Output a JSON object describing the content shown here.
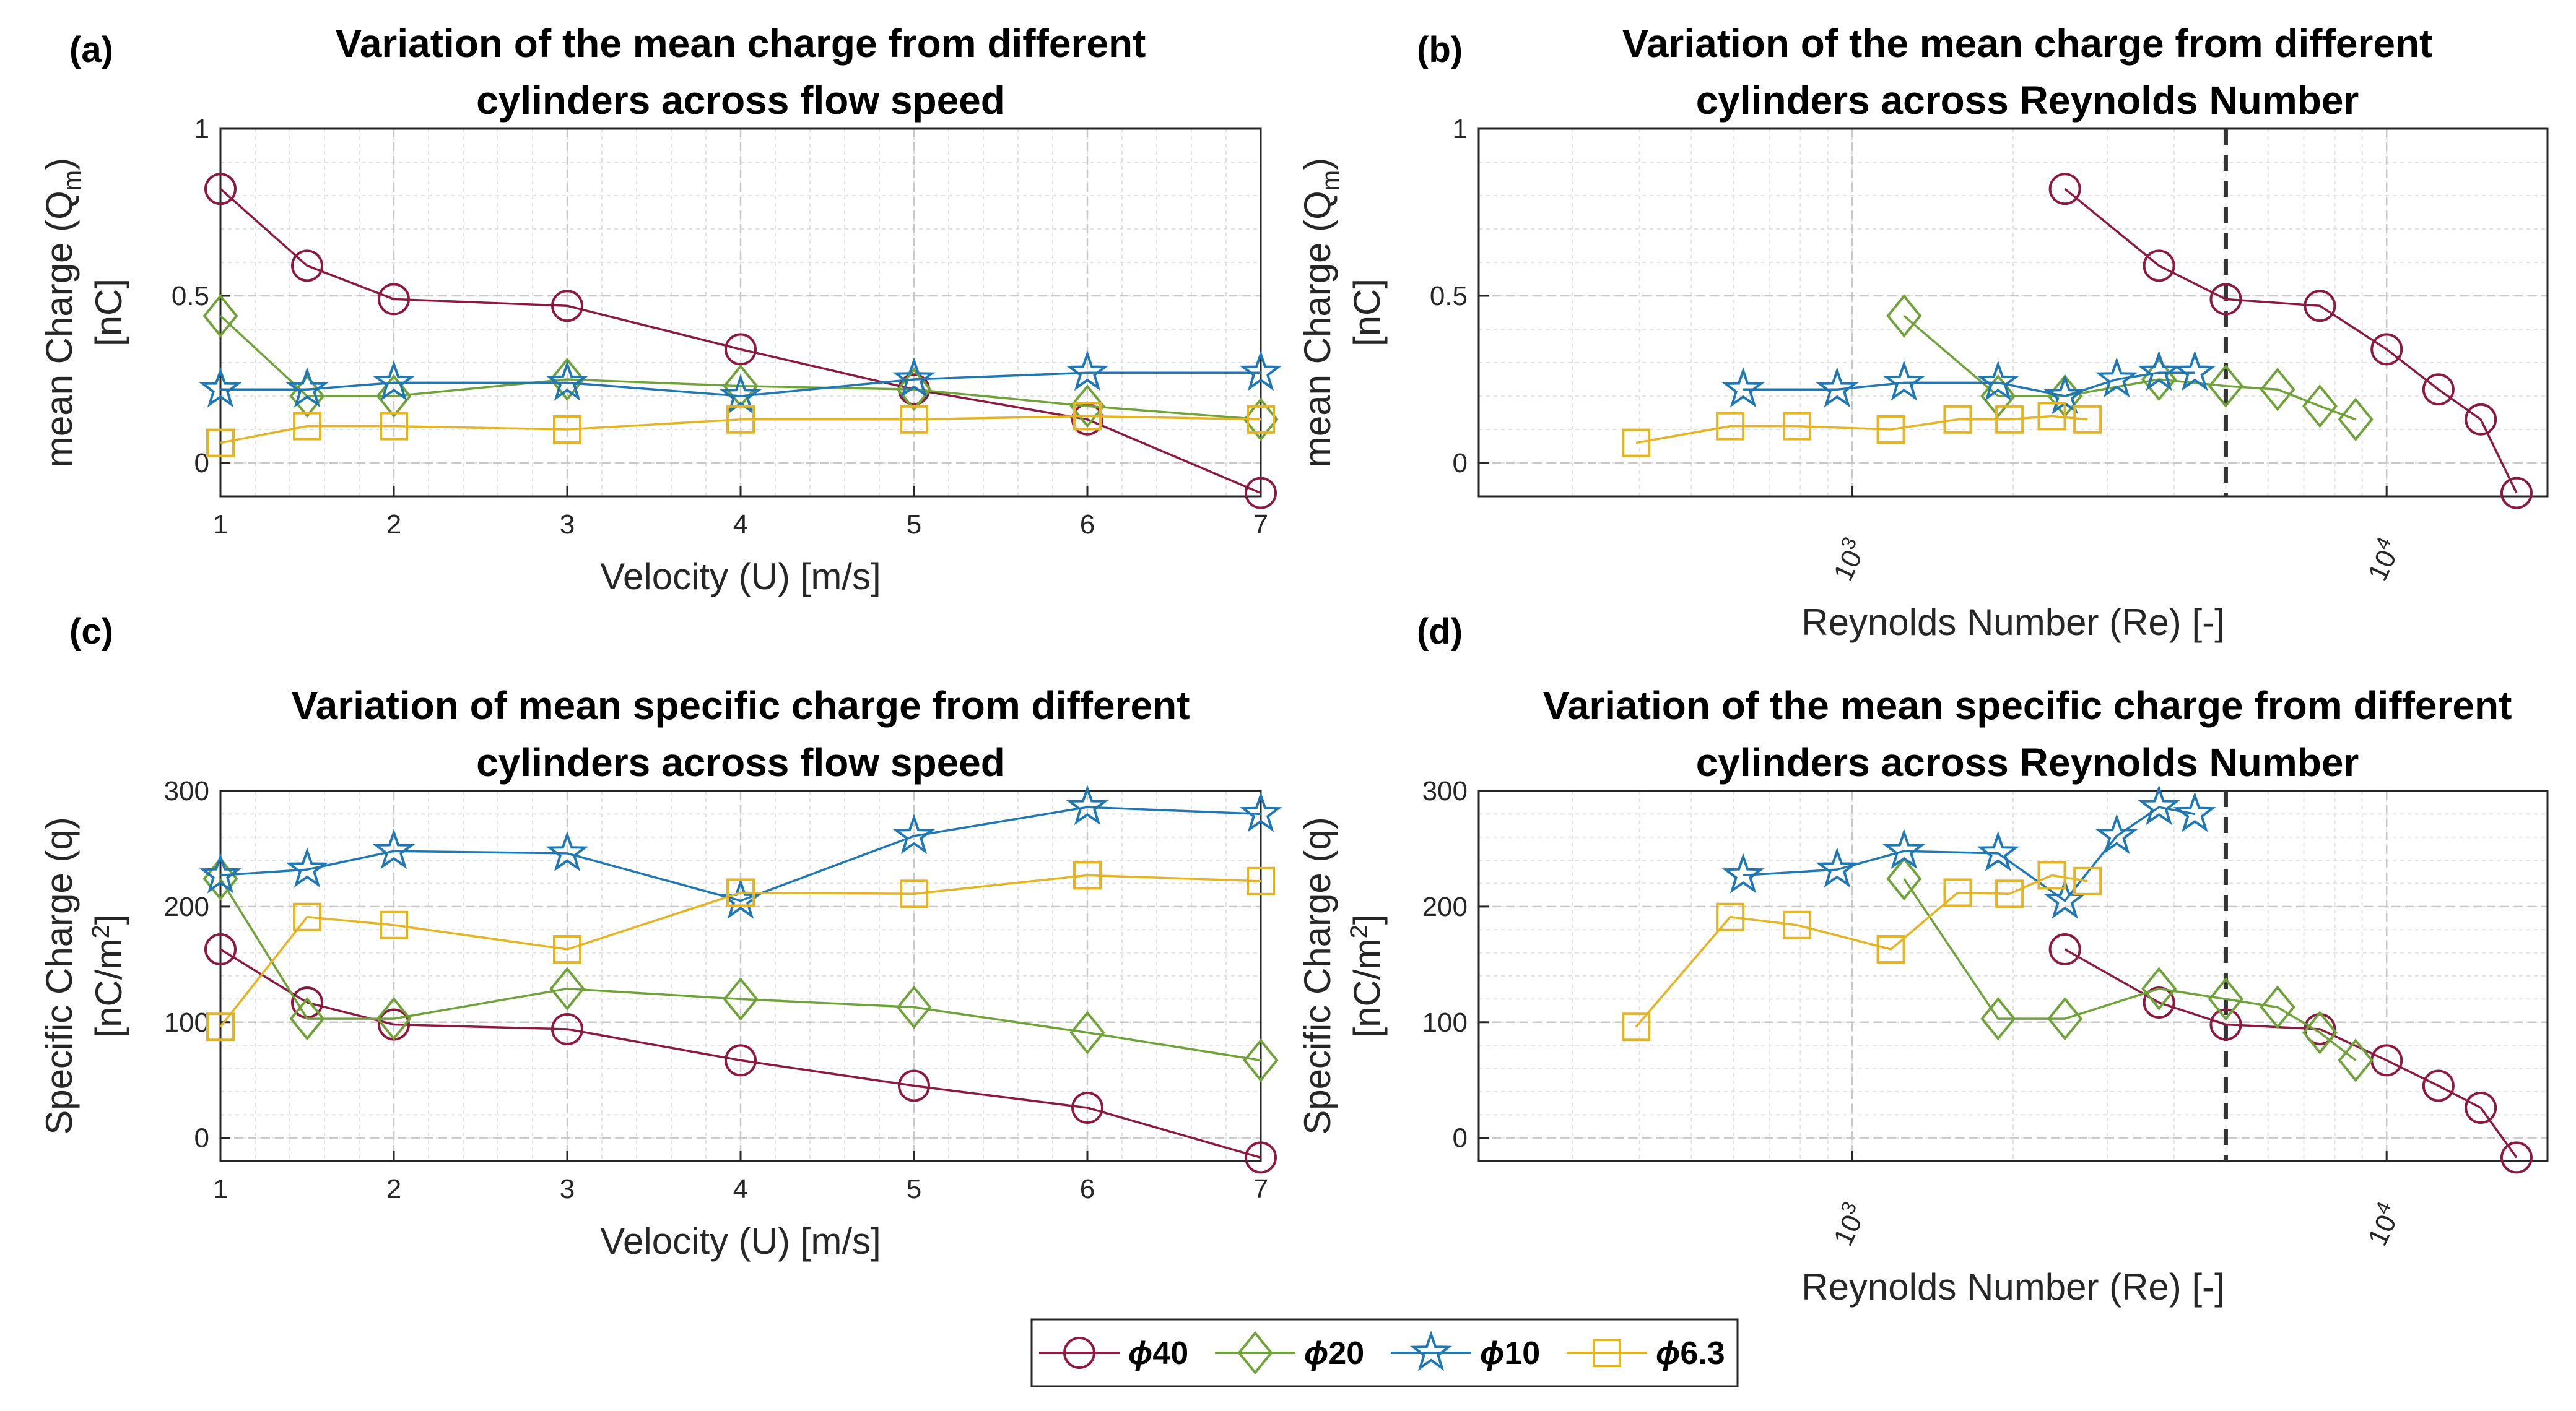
{
  "legend": {
    "entries": [
      {
        "symbol": "ϕ",
        "label": "40",
        "marker": "circle",
        "color": "#8B1A3E"
      },
      {
        "symbol": "ϕ",
        "label": "20",
        "marker": "diamond",
        "color": "#6FA33A"
      },
      {
        "symbol": "ϕ",
        "label": "10",
        "marker": "star",
        "color": "#1F77B4"
      },
      {
        "symbol": "ϕ",
        "label": "6.3",
        "marker": "square",
        "color": "#E6B422"
      }
    ]
  },
  "chart_data": [
    {
      "id": "a",
      "panel_label": "(a)",
      "type": "line",
      "title": [
        "Variation of the mean charge from different",
        "cylinders across flow speed"
      ],
      "xlabel": "Velocity (U) [m/s]",
      "ylabel": [
        "mean Charge (Q",
        "m",
        ")",
        "[nC]"
      ],
      "xscale": "linear",
      "xlim": [
        1,
        7
      ],
      "ylim": [
        -0.1,
        1
      ],
      "xticks": [
        1,
        2,
        3,
        4,
        5,
        6,
        7
      ],
      "xtick_labels": [
        "1",
        "2",
        "3",
        "4",
        "5",
        "6",
        "7"
      ],
      "yticks": [
        0,
        0.5,
        1
      ],
      "ytick_labels": [
        "0",
        "0.5",
        "1"
      ],
      "grid": true,
      "vline": null,
      "series": [
        {
          "name": "ϕ40",
          "x": [
            1,
            1.5,
            2,
            3,
            4,
            5,
            6,
            7
          ],
          "y": [
            0.82,
            0.59,
            0.49,
            0.47,
            0.34,
            0.22,
            0.13,
            -0.09
          ]
        },
        {
          "name": "ϕ20",
          "x": [
            1,
            1.5,
            2,
            3,
            4,
            5,
            6,
            7
          ],
          "y": [
            0.44,
            0.2,
            0.2,
            0.25,
            0.23,
            0.22,
            0.17,
            0.13
          ]
        },
        {
          "name": "ϕ10",
          "x": [
            1,
            1.5,
            2,
            3,
            4,
            5,
            6,
            7
          ],
          "y": [
            0.22,
            0.22,
            0.24,
            0.24,
            0.2,
            0.25,
            0.27,
            0.27
          ]
        },
        {
          "name": "ϕ6.3",
          "x": [
            1,
            1.5,
            2,
            3,
            4,
            5,
            6,
            7
          ],
          "y": [
            0.06,
            0.11,
            0.11,
            0.1,
            0.13,
            0.13,
            0.14,
            0.13
          ]
        }
      ]
    },
    {
      "id": "b",
      "panel_label": "(b)",
      "type": "line",
      "title": [
        "Variation of the mean charge from different",
        "cylinders across Reynolds Number"
      ],
      "xlabel": "Reynolds Number (Re) [-]",
      "ylabel": [
        "mean Charge (Q",
        "m",
        ")",
        "[nC]"
      ],
      "xscale": "log",
      "xlim": [
        200,
        20000
      ],
      "ylim": [
        -0.1,
        1
      ],
      "xticks": [
        1000,
        10000
      ],
      "xtick_labels": [
        "10",
        "10"
      ],
      "xtick_exponents": [
        "3",
        "4"
      ],
      "yticks": [
        0,
        0.5,
        1
      ],
      "ytick_labels": [
        "0",
        "0.5",
        "1"
      ],
      "grid": true,
      "vline": 5000,
      "series": [
        {
          "name": "ϕ40",
          "x": [
            2500,
            3750,
            5000,
            7500,
            10000,
            12500,
            15000,
            17500
          ],
          "y": [
            0.82,
            0.59,
            0.49,
            0.47,
            0.34,
            0.22,
            0.13,
            -0.09
          ]
        },
        {
          "name": "ϕ20",
          "x": [
            1250,
            1875,
            2500,
            3750,
            5000,
            6250,
            7500,
            8750
          ],
          "y": [
            0.44,
            0.2,
            0.2,
            0.25,
            0.23,
            0.22,
            0.17,
            0.13
          ]
        },
        {
          "name": "ϕ10",
          "x": [
            625,
            937,
            1250,
            1875,
            2500,
            3125,
            3750,
            4375
          ],
          "y": [
            0.22,
            0.22,
            0.24,
            0.24,
            0.2,
            0.25,
            0.27,
            0.27
          ]
        },
        {
          "name": "ϕ6.3",
          "x": [
            394,
            591,
            788,
            1181,
            1575,
            1969,
            2363,
            2756
          ],
          "y": [
            0.06,
            0.11,
            0.11,
            0.1,
            0.13,
            0.13,
            0.14,
            0.13
          ]
        }
      ]
    },
    {
      "id": "c",
      "panel_label": "(c)",
      "type": "line",
      "title": [
        "Variation of mean specific charge from different",
        "cylinders across flow speed"
      ],
      "xlabel": "Velocity (U) [m/s]",
      "ylabel": [
        "Specific Charge (q)",
        "[nC/m",
        "2",
        "]"
      ],
      "xscale": "linear",
      "xlim": [
        1,
        7
      ],
      "ylim": [
        -20,
        300
      ],
      "xticks": [
        1,
        2,
        3,
        4,
        5,
        6,
        7
      ],
      "xtick_labels": [
        "1",
        "2",
        "3",
        "4",
        "5",
        "6",
        "7"
      ],
      "yticks": [
        0,
        100,
        200,
        300
      ],
      "ytick_labels": [
        "0",
        "100",
        "200",
        "300"
      ],
      "grid": true,
      "vline": null,
      "series": [
        {
          "name": "ϕ40",
          "x": [
            1,
            1.5,
            2,
            3,
            4,
            5,
            6,
            7
          ],
          "y": [
            163,
            117,
            98,
            94,
            67,
            45,
            26,
            -17
          ]
        },
        {
          "name": "ϕ20",
          "x": [
            1,
            1.5,
            2,
            3,
            4,
            5,
            6,
            7
          ],
          "y": [
            224,
            103,
            103,
            129,
            120,
            113,
            91,
            67
          ]
        },
        {
          "name": "ϕ10",
          "x": [
            1,
            1.5,
            2,
            3,
            4,
            5,
            6,
            7
          ],
          "y": [
            227,
            232,
            248,
            246,
            205,
            261,
            286,
            280
          ]
        },
        {
          "name": "ϕ6.3",
          "x": [
            1,
            1.5,
            2,
            3,
            4,
            5,
            6,
            7
          ],
          "y": [
            96,
            191,
            184,
            163,
            212,
            211,
            227,
            222
          ]
        }
      ]
    },
    {
      "id": "d",
      "panel_label": "(d)",
      "type": "line",
      "title": [
        "Variation of the mean specific charge from different",
        "cylinders across Reynolds Number"
      ],
      "xlabel": "Reynolds Number (Re) [-]",
      "ylabel": [
        "Specific Charge (q)",
        "[nC/m",
        "2",
        "]"
      ],
      "xscale": "log",
      "xlim": [
        200,
        20000
      ],
      "ylim": [
        -20,
        300
      ],
      "xticks": [
        1000,
        10000
      ],
      "xtick_labels": [
        "10",
        "10"
      ],
      "xtick_exponents": [
        "3",
        "4"
      ],
      "yticks": [
        0,
        100,
        200,
        300
      ],
      "ytick_labels": [
        "0",
        "100",
        "200",
        "300"
      ],
      "grid": true,
      "vline": 5000,
      "series": [
        {
          "name": "ϕ40",
          "x": [
            2500,
            3750,
            5000,
            7500,
            10000,
            12500,
            15000,
            17500
          ],
          "y": [
            163,
            117,
            98,
            94,
            67,
            45,
            26,
            -17
          ]
        },
        {
          "name": "ϕ20",
          "x": [
            1250,
            1875,
            2500,
            3750,
            5000,
            6250,
            7500,
            8750
          ],
          "y": [
            224,
            103,
            103,
            129,
            120,
            113,
            91,
            67
          ]
        },
        {
          "name": "ϕ10",
          "x": [
            625,
            937,
            1250,
            1875,
            2500,
            3125,
            3750,
            4375
          ],
          "y": [
            227,
            232,
            248,
            246,
            205,
            261,
            286,
            280
          ]
        },
        {
          "name": "ϕ6.3",
          "x": [
            394,
            591,
            788,
            1181,
            1575,
            1969,
            2363,
            2756
          ],
          "y": [
            96,
            191,
            184,
            163,
            212,
            211,
            227,
            222
          ]
        }
      ]
    }
  ]
}
